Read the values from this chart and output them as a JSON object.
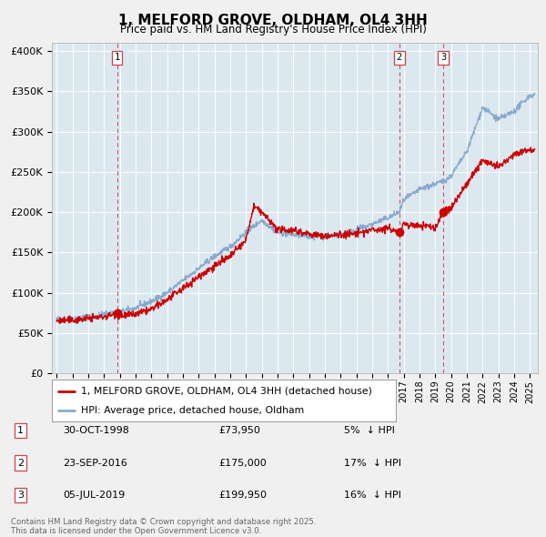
{
  "title": "1, MELFORD GROVE, OLDHAM, OL4 3HH",
  "subtitle": "Price paid vs. HM Land Registry's House Price Index (HPI)",
  "bg_color": "#f0f0f0",
  "plot_bg_color": "#dce8f0",
  "transactions": [
    {
      "num": 1,
      "date_str": "30-OCT-1998",
      "date_x": 1998.83,
      "price": 73950,
      "pct": "5%",
      "dir": "↓"
    },
    {
      "num": 2,
      "date_str": "23-SEP-2016",
      "date_x": 2016.72,
      "price": 175000,
      "pct": "17%",
      "dir": "↓"
    },
    {
      "num": 3,
      "date_str": "05-JUL-2019",
      "date_x": 2019.5,
      "price": 199950,
      "pct": "16%",
      "dir": "↓"
    }
  ],
  "legend_label_red": "1, MELFORD GROVE, OLDHAM, OL4 3HH (detached house)",
  "legend_label_blue": "HPI: Average price, detached house, Oldham",
  "footer": "Contains HM Land Registry data © Crown copyright and database right 2025.\nThis data is licensed under the Open Government Licence v3.0.",
  "ylabel_ticks": [
    "£0",
    "£50K",
    "£100K",
    "£150K",
    "£200K",
    "£250K",
    "£300K",
    "£350K",
    "£400K"
  ],
  "ytick_vals": [
    0,
    50000,
    100000,
    150000,
    200000,
    250000,
    300000,
    350000,
    400000
  ],
  "ylim": [
    0,
    410000
  ],
  "xlim_start": 1994.7,
  "xlim_end": 2025.5,
  "xtick_years": [
    1995,
    1996,
    1997,
    1998,
    1999,
    2000,
    2001,
    2002,
    2003,
    2004,
    2005,
    2006,
    2007,
    2008,
    2009,
    2010,
    2011,
    2012,
    2013,
    2014,
    2015,
    2016,
    2017,
    2018,
    2019,
    2020,
    2021,
    2022,
    2023,
    2024,
    2025
  ],
  "red_color": "#cc0000",
  "blue_color": "#88aacc",
  "dashed_color": "#cc4444",
  "grid_color": "#ffffff"
}
